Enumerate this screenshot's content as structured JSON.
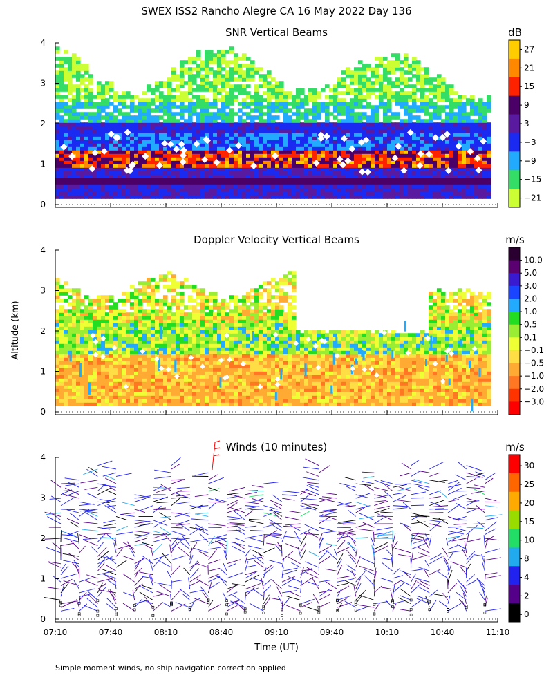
{
  "title": "SWEX ISS2 Rancho Alegre CA  16 May 2022 Day 136",
  "ylabel": "Altitude (km)",
  "xlabel": "Time (UT)",
  "footnote": "Simple moment winds, no ship navigation correction applied",
  "chart_data": [
    {
      "type": "heatmap",
      "title": "SNR Vertical Beams",
      "units": "dB",
      "ylim": [
        0,
        4
      ],
      "yticks": [
        "0",
        "1",
        "2",
        "3",
        "4"
      ],
      "colorbar": {
        "labels": [
          "27",
          "21",
          "15",
          "9",
          "3",
          "−3",
          "−9",
          "−15",
          "−21"
        ],
        "colors": [
          "#ffcc00",
          "#ff8800",
          "#ff2200",
          "#4a0066",
          "#5a1aa0",
          "#1a2af0",
          "#22aaff",
          "#33dd66",
          "#ccff33"
        ]
      }
    },
    {
      "type": "heatmap",
      "title": "Doppler Velocity Vertical Beams",
      "units": "m/s",
      "ylim": [
        0,
        4
      ],
      "yticks": [
        "0",
        "1",
        "2",
        "3",
        "4"
      ],
      "colorbar": {
        "labels": [
          "10.0",
          "5.0",
          "3.0",
          "2.0",
          "1.0",
          "0.5",
          "0.1",
          "−0.1",
          "−0.5",
          "−1.0",
          "−2.0",
          "−3.0"
        ],
        "colors": [
          "#2a0030",
          "#5a0070",
          "#3a1ad0",
          "#1a44ff",
          "#22aaff",
          "#22dd22",
          "#99ee33",
          "#eeff33",
          "#ffdd44",
          "#ffaa33",
          "#ff7722",
          "#ff3300",
          "#ff0000"
        ]
      }
    },
    {
      "type": "scatter",
      "title": "Winds (10 minutes)",
      "units": "m/s",
      "ylim": [
        0,
        4
      ],
      "yticks": [
        "0",
        "1",
        "2",
        "3",
        "4"
      ],
      "colorbar": {
        "labels": [
          "30",
          "25",
          "20",
          "15",
          "10",
          "8",
          "4",
          "2",
          "0"
        ],
        "colors": [
          "#ff0000",
          "#ff6600",
          "#ffaa00",
          "#99dd00",
          "#22dd66",
          "#22aaee",
          "#2222ee",
          "#550088",
          "#000000"
        ]
      }
    }
  ],
  "time_axis": {
    "ticks": [
      "07:10",
      "07:40",
      "08:10",
      "08:40",
      "09:10",
      "09:40",
      "10:10",
      "10:40",
      "11:10"
    ],
    "start_minutes": 430,
    "end_minutes": 670
  }
}
